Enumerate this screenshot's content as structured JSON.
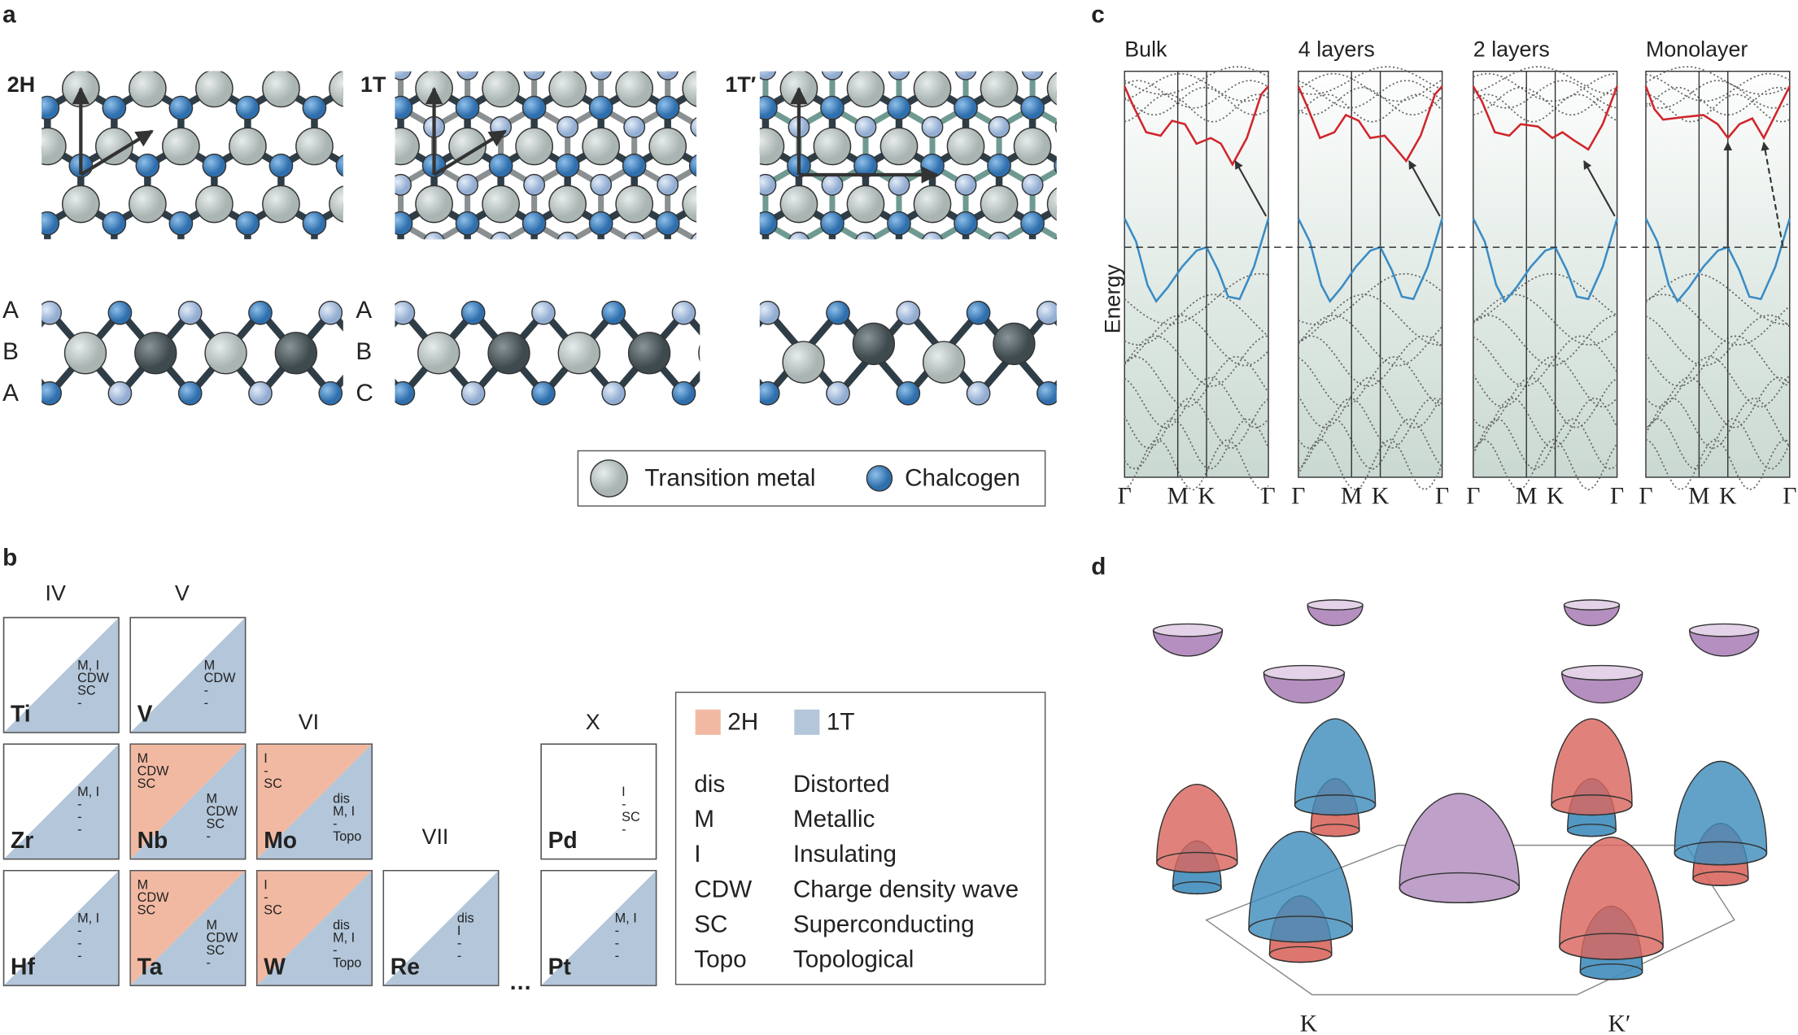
{
  "panels": {
    "a": {
      "label": "a",
      "structures": [
        {
          "name": "2H",
          "stacking": [
            "A",
            "B",
            "A"
          ]
        },
        {
          "name": "1T",
          "stacking": [
            "A",
            "B",
            "C"
          ]
        },
        {
          "name": "1T′",
          "stacking": []
        }
      ],
      "legend": [
        "Transition metal",
        "Chalcogen"
      ]
    },
    "b": {
      "label": "b",
      "groups": [
        "IV",
        "V",
        "VI",
        "VII",
        "X"
      ],
      "cells": [
        {
          "symbol": "Ti",
          "phases": [
            "1T"
          ],
          "props_1T": [
            "M, I",
            "CDW",
            "SC",
            "-"
          ]
        },
        {
          "symbol": "V",
          "phases": [
            "1T"
          ],
          "props_1T": [
            "M",
            "CDW",
            "-",
            "-"
          ]
        },
        {
          "symbol": "Zr",
          "phases": [
            "1T"
          ],
          "props_1T": [
            "M, I",
            "-",
            "-",
            "-"
          ]
        },
        {
          "symbol": "Nb",
          "phases": [
            "2H",
            "1T"
          ],
          "props_2H": [
            "M",
            "CDW",
            "SC"
          ],
          "props_1T": [
            "M",
            "CDW",
            "SC",
            "-"
          ]
        },
        {
          "symbol": "Mo",
          "phases": [
            "2H",
            "1T"
          ],
          "props_2H": [
            "I",
            "-",
            "SC"
          ],
          "props_1T": [
            "dis",
            "M, I",
            "-",
            "Topo"
          ]
        },
        {
          "symbol": "Pd",
          "phases": [],
          "props": [
            "I",
            "-",
            "SC",
            "-"
          ]
        },
        {
          "symbol": "Hf",
          "phases": [
            "1T"
          ],
          "props_1T": [
            "M, I",
            "-",
            "-",
            "-"
          ]
        },
        {
          "symbol": "Ta",
          "phases": [
            "2H",
            "1T"
          ],
          "props_2H": [
            "M",
            "CDW",
            "SC"
          ],
          "props_1T": [
            "M",
            "CDW",
            "SC",
            "-"
          ]
        },
        {
          "symbol": "W",
          "phases": [
            "2H",
            "1T"
          ],
          "props_2H": [
            "I",
            "-",
            "SC"
          ],
          "props_1T": [
            "dis",
            "M, I",
            "-",
            "Topo"
          ]
        },
        {
          "symbol": "Re",
          "phases": [
            "1T"
          ],
          "props_1T": [
            "dis",
            "I",
            "-",
            "-"
          ]
        },
        {
          "symbol": "Pt",
          "phases": [
            "1T"
          ],
          "props_1T": [
            "M, I",
            "-",
            "-",
            "-"
          ]
        }
      ],
      "legend": {
        "swatches": [
          {
            "name": "2H",
            "color": "#f2b9a2"
          },
          {
            "name": "1T",
            "color": "#b3c6da"
          }
        ],
        "abbreviations": [
          [
            "dis",
            "Distorted"
          ],
          [
            "M",
            "Metallic"
          ],
          [
            "I",
            "Insulating"
          ],
          [
            "CDW",
            "Charge density wave"
          ],
          [
            "SC",
            "Superconducting"
          ],
          [
            "Topo",
            "Topological"
          ]
        ]
      }
    },
    "c": {
      "label": "c",
      "axis_label": "Energy",
      "panels": [
        "Bulk",
        "4 layers",
        "2 layers",
        "Monolayer"
      ],
      "kpoints": [
        "Γ",
        "M",
        "K",
        "Γ"
      ]
    },
    "d": {
      "label": "d",
      "valleys": [
        "K",
        "K′"
      ]
    }
  }
}
